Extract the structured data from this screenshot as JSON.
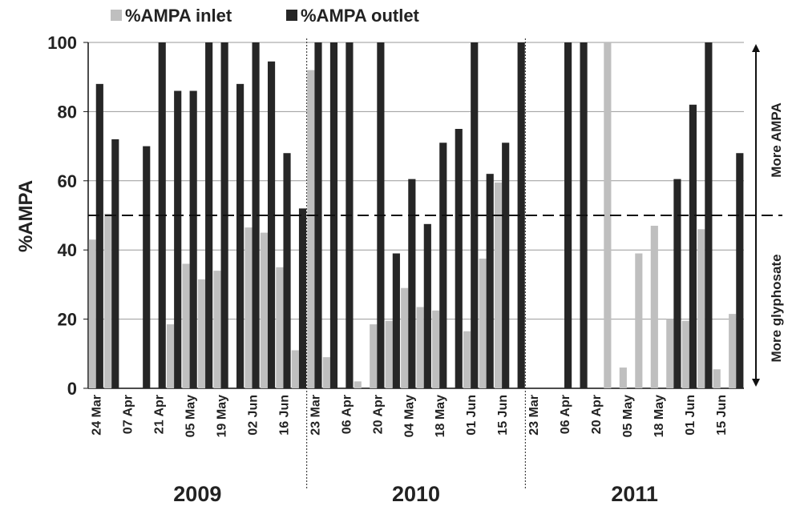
{
  "chart_data": {
    "type": "bar",
    "y_label": "%AMPA",
    "categories": [
      "24 Mar",
      null,
      "07 Apr",
      null,
      "21 Apr",
      null,
      "05 May",
      null,
      "19 May",
      null,
      "02 Jun",
      null,
      "16 Jun",
      null,
      "23 Mar",
      null,
      "06 Apr",
      null,
      "20 Apr",
      null,
      "04 May",
      null,
      "18 May",
      null,
      "01 Jun",
      null,
      "15 Jun",
      null,
      "23 Mar",
      null,
      "06 Apr",
      null,
      "20 Apr",
      null,
      "05 May",
      null,
      "18 May",
      null,
      "01 Jun",
      null,
      "15 Jun",
      null
    ],
    "groups": [
      "2009",
      "2010",
      "2011"
    ],
    "series": [
      {
        "name": "%AMPA inlet",
        "color": "#bfbfbf",
        "values": [
          43,
          50.5,
          null,
          null,
          null,
          18.5,
          36,
          31.5,
          34,
          null,
          46.5,
          45,
          35,
          11,
          92,
          9,
          null,
          2,
          18.5,
          19.5,
          29,
          23.5,
          22.5,
          null,
          16.5,
          37.5,
          59.5,
          null,
          null,
          null,
          null,
          null,
          null,
          100,
          6,
          39,
          47,
          20,
          19.5,
          46,
          5.5,
          21.5
        ]
      },
      {
        "name": "%AMPA outlet",
        "color": "#262626",
        "values": [
          88,
          72,
          null,
          70,
          100,
          86,
          86,
          100,
          100,
          88,
          100,
          94.5,
          68,
          52,
          100,
          100,
          100,
          null,
          100,
          39,
          60.5,
          47.5,
          71,
          75,
          100,
          62,
          71,
          100,
          null,
          null,
          100,
          100,
          null,
          null,
          null,
          null,
          null,
          60.5,
          82,
          100,
          null,
          68
        ]
      }
    ],
    "ylim": [
      0,
      100
    ],
    "yticks": [
      0,
      20,
      40,
      60,
      80,
      100
    ],
    "grid": true,
    "reference_line": 50,
    "annotations": [
      "More AMPA",
      "More glyphosate"
    ]
  }
}
